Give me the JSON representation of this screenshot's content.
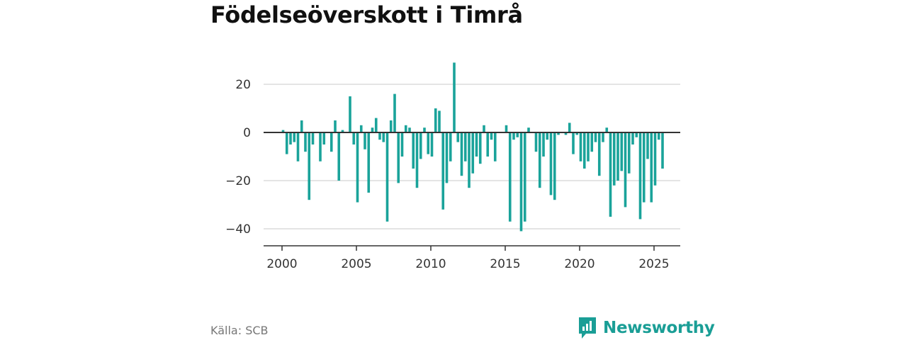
{
  "title": "Födelseöverskott i Timrå",
  "source": "Källa: SCB",
  "brand": {
    "name": "Newsworthy",
    "icon": "newsworthy-logo-icon",
    "color": "#1a9e96"
  },
  "chart_data": {
    "type": "bar",
    "title": "Födelseöverskott i Timrå",
    "xlabel": "",
    "ylabel": "",
    "bar_color": "#1aa39a",
    "grid": true,
    "xlim": [
      1999.4,
      2026.5
    ],
    "ylim": [
      -47,
      30
    ],
    "x_ticks": [
      2000,
      2005,
      2010,
      2015,
      2020,
      2025
    ],
    "y_ticks": [
      20,
      0,
      -20,
      -40
    ],
    "y_tick_labels": [
      "20",
      "0",
      "−20",
      "−40"
    ],
    "start_year": 2000,
    "values": [
      1,
      -9,
      -5,
      -4,
      -12,
      5,
      -8,
      -28,
      -5,
      0,
      -12,
      -5,
      0,
      -8,
      5,
      -20,
      1,
      0,
      15,
      -5,
      -29,
      3,
      -7,
      -25,
      2,
      6,
      -3,
      -4,
      -37,
      5,
      16,
      -21,
      -10,
      3,
      2,
      -15,
      -23,
      -11,
      2,
      -9,
      -10,
      10,
      9,
      -32,
      -21,
      -12,
      29,
      -4,
      -18,
      -12,
      -23,
      -17,
      -10,
      -13,
      3,
      -10,
      -3,
      -12,
      0,
      0,
      3,
      -37,
      -3,
      -2,
      -41,
      -37,
      2,
      0,
      -8,
      -23,
      -10,
      -3,
      -26,
      -28,
      -1,
      0,
      -1,
      4,
      -9,
      -1,
      -12,
      -15,
      -12,
      -8,
      -4,
      -18,
      -4,
      2,
      -35,
      -22,
      -20,
      -16,
      -31,
      -17,
      -5,
      -2,
      -36,
      -29,
      -11,
      -29,
      -22,
      -3,
      -15
    ]
  }
}
